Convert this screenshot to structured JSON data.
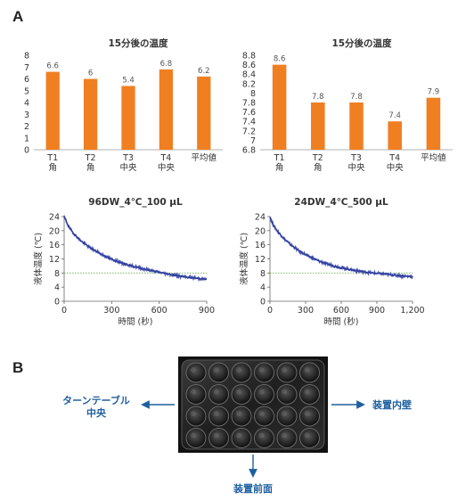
{
  "panels": {
    "a": "A",
    "b": "B"
  },
  "chart_data": [
    {
      "type": "bar",
      "title": "15分後の温度",
      "categories": [
        "T1\n角",
        "T2\n角",
        "T3\n中央",
        "T4\n中央",
        "平均値"
      ],
      "values": [
        6.6,
        6,
        5.4,
        6.8,
        6.2
      ],
      "value_labels": [
        "6.6",
        "6",
        "5.4",
        "6.8",
        "6.2"
      ],
      "ylim": [
        0,
        8
      ],
      "yticks": [
        0,
        1,
        2,
        3,
        4,
        5,
        6,
        7,
        8
      ],
      "ytick_labels": [
        "0",
        "1",
        "2",
        "3",
        "4",
        "5",
        "6",
        "7",
        "8"
      ],
      "color": "#f07f22"
    },
    {
      "type": "bar",
      "title": "15分後の温度",
      "categories": [
        "T1\n角",
        "T2\n角",
        "T3\n中央",
        "T4\n中央",
        "平均値"
      ],
      "values": [
        8.6,
        7.8,
        7.8,
        7.4,
        7.9
      ],
      "value_labels": [
        "8.6",
        "7.8",
        "7.8",
        "7.4",
        "7.9"
      ],
      "ylim": [
        6.8,
        8.8
      ],
      "yticks": [
        6.8,
        7,
        7.2,
        7.4,
        7.6,
        7.8,
        8,
        8.2,
        8.4,
        8.6,
        8.8
      ],
      "ytick_labels": [
        "6.8",
        "7",
        "7.2",
        "7.4",
        "7.6",
        "7.8",
        "8",
        "8.2",
        "8.4",
        "8.6",
        "8.8"
      ],
      "color": "#f07f22"
    },
    {
      "type": "line",
      "title": "96DW_4℃_100 µL",
      "xlabel": "時間 (秒)",
      "ylabel": "液体温度 (℃)",
      "xlim": [
        0,
        900
      ],
      "ylim": [
        0,
        24
      ],
      "xticks": [
        0,
        300,
        600,
        900
      ],
      "xtick_labels": [
        "0",
        "300",
        "600",
        "900"
      ],
      "yticks": [
        0,
        4,
        8,
        12,
        16,
        20,
        24
      ],
      "ytick_labels": [
        "0",
        "4",
        "8",
        "12",
        "16",
        "20",
        "24"
      ],
      "reference_y": 8,
      "reference_color": "#6aa84f",
      "series_color": "#2b3aa0",
      "x": [
        0,
        15,
        30,
        60,
        90,
        120,
        180,
        240,
        300,
        360,
        420,
        480,
        540,
        600,
        660,
        720,
        780,
        840,
        900
      ],
      "y": [
        24,
        22.5,
        21,
        19.2,
        17.8,
        16.6,
        14.7,
        13.2,
        11.9,
        10.9,
        10.1,
        9.4,
        8.8,
        8.2,
        7.7,
        7.2,
        6.8,
        6.5,
        6.2
      ]
    },
    {
      "type": "line",
      "title": "24DW_4℃_500 µL",
      "xlabel": "時間 (秒)",
      "ylabel": "液体温度 (℃)",
      "xlim": [
        0,
        1200
      ],
      "ylim": [
        0,
        24
      ],
      "xticks": [
        0,
        300,
        600,
        900,
        1200
      ],
      "xtick_labels": [
        "0",
        "300",
        "600",
        "900",
        "1,200"
      ],
      "yticks": [
        0,
        4,
        8,
        12,
        16,
        20,
        24
      ],
      "ytick_labels": [
        "0",
        "4",
        "8",
        "12",
        "16",
        "20",
        "24"
      ],
      "reference_y": 8,
      "reference_color": "#6aa84f",
      "series_color": "#2b3aa0",
      "x": [
        0,
        15,
        30,
        60,
        90,
        120,
        180,
        240,
        300,
        360,
        420,
        480,
        540,
        600,
        660,
        720,
        780,
        840,
        900,
        960,
        1020,
        1080,
        1140,
        1200
      ],
      "y": [
        24,
        22.6,
        21.5,
        20,
        18.8,
        17.7,
        15.9,
        14.4,
        13.2,
        12.2,
        11.3,
        10.6,
        10,
        9.5,
        9.1,
        8.7,
        8.4,
        8.1,
        7.9,
        7.7,
        7.5,
        7.3,
        7.1,
        7
      ]
    }
  ],
  "photo": {
    "left_label": [
      "ターンテーブル",
      "中央"
    ],
    "right_label": "装置内壁",
    "bottom_label": "装置前面",
    "arrow_color": "#1f5f9e"
  }
}
